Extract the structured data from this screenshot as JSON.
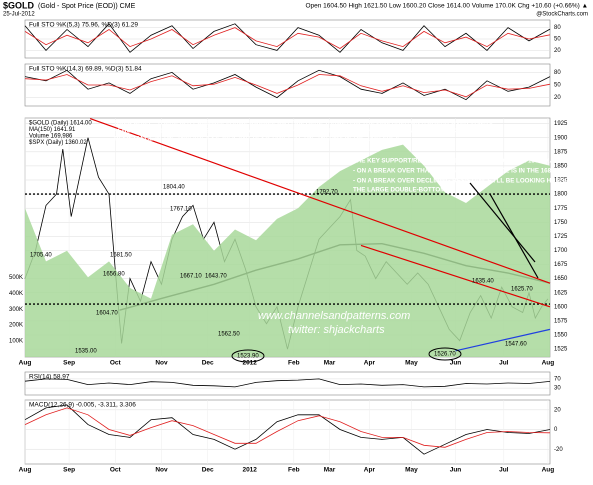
{
  "header": {
    "symbol": "$GOLD",
    "name": "(Gold - Spot Price (EOD)) CME",
    "date": "25-Jul-2012",
    "quote": "Open 1604.50  High 1621.50  Low 1600.20  Close 1614.00  Volume 170.0K  Chg +10.60 (+0.66%) ▲",
    "brand": "@StockCharts.com"
  },
  "notes": {
    "left": [
      "GOLD DAILY - THERE IS A POSSIBLE LARGE DOUBLE BOTTOM HERE TARGETING THE 2060 AREA ON A BREAK OVER 1792.70",
      "- SHORTER TERM THOUGH THE SYMMETRICAL TRIANGLE HAS BROKEN UP WITH THE OBVIOUS TARGET AT DECLINING",
      "RESISTANCE IN THE 1680 AREA SIGNIFICANT RESISTANCE AT THE 150 DMA IN THE 1640 AREA"
    ],
    "right": [
      "THE KEY SUPPORT/RESISTANCE LEVEL ON GOLD IS THE 150 DMA",
      "- ON A BREAK OVER THAT DECLINING RESISTANCE IS IN THE 1680 AREA",
      "- ON A BREAK OVER DECLINING RESISTANCE I'LL BE LOOKING HARDER AT",
      "THE LARGE DOUBLE-BOTTOM"
    ],
    "watermark": [
      "www.channelsandpatterns.com",
      "twitter: shjackcharts"
    ]
  },
  "price_labels": [
    "1705.40",
    "1681.50",
    "1656.80",
    "1804.40",
    "1767.10",
    "1667.10",
    "1643.70",
    "1604.70",
    "1535.00",
    "1562.50",
    "1523.90",
    "1792.70",
    "1526.70",
    "1635.40",
    "1625.70",
    "1547.60"
  ],
  "chart_data": [
    {
      "type": "line",
      "title": "Full STO %K(5,3) 75.96, %D(3) 61.29",
      "xlim": [
        0,
        250
      ],
      "ylim": [
        0,
        100
      ],
      "yticks": [
        20,
        50,
        80
      ],
      "x": [
        0,
        10,
        20,
        30,
        40,
        50,
        60,
        70,
        80,
        90,
        100,
        110,
        120,
        130,
        140,
        150,
        160,
        170,
        180,
        190,
        200,
        210,
        220,
        230,
        240,
        250
      ],
      "series": [
        {
          "color": "#000000",
          "values": [
            85,
            20,
            75,
            30,
            90,
            15,
            60,
            85,
            25,
            70,
            90,
            35,
            20,
            80,
            60,
            15,
            75,
            40,
            20,
            85,
            30,
            65,
            20,
            80,
            45,
            76
          ]
        },
        {
          "color": "#e02020",
          "values": [
            70,
            35,
            60,
            40,
            75,
            30,
            50,
            75,
            35,
            60,
            80,
            45,
            30,
            65,
            55,
            25,
            65,
            45,
            30,
            70,
            40,
            55,
            30,
            65,
            50,
            61
          ]
        }
      ]
    },
    {
      "type": "line",
      "title": "Full STO %K(14,3) 69.89, %D(3) 51.84",
      "xlim": [
        0,
        250
      ],
      "ylim": [
        0,
        100
      ],
      "yticks": [
        20,
        50,
        80
      ],
      "x": [
        0,
        10,
        20,
        30,
        40,
        50,
        60,
        70,
        80,
        90,
        100,
        110,
        120,
        130,
        140,
        150,
        160,
        170,
        180,
        190,
        200,
        210,
        220,
        230,
        240,
        250
      ],
      "series": [
        {
          "color": "#000000",
          "values": [
            70,
            60,
            85,
            40,
            55,
            30,
            65,
            80,
            40,
            55,
            75,
            45,
            20,
            60,
            85,
            70,
            40,
            30,
            55,
            25,
            40,
            15,
            60,
            35,
            45,
            70
          ]
        },
        {
          "color": "#e02020",
          "values": [
            65,
            62,
            75,
            50,
            50,
            38,
            58,
            72,
            48,
            52,
            68,
            50,
            30,
            50,
            75,
            72,
            48,
            35,
            48,
            32,
            38,
            22,
            50,
            40,
            42,
            52
          ]
        }
      ]
    },
    {
      "type": "line",
      "legend": [
        "$GOLD (Daily) 1614.00",
        "MA(150) 1641.91",
        "Volume 169,986",
        "$SPX (Daily) 1360.02"
      ],
      "xlim": [
        0,
        250
      ],
      "ylim": [
        1511,
        1935
      ],
      "y2lim": [
        1000,
        1450
      ],
      "yticks": [
        1525,
        1550,
        1575,
        1600,
        1625,
        1650,
        1675,
        1700,
        1725,
        1750,
        1775,
        1800,
        1825,
        1850,
        1875,
        1900,
        1925
      ],
      "vlim": [
        0,
        1500000
      ],
      "vticks": [
        {
          "value": 100000,
          "label": "100K"
        },
        {
          "value": 200000,
          "label": "200K"
        },
        {
          "value": 300000,
          "label": "300K"
        },
        {
          "value": 400000,
          "label": "400K"
        },
        {
          "value": 500000,
          "label": "500K"
        }
      ],
      "xticks": [
        {
          "value": 0,
          "label": "Aug"
        },
        {
          "value": 21,
          "label": "Sep"
        },
        {
          "value": 43,
          "label": "Oct"
        },
        {
          "value": 65,
          "label": "Nov"
        },
        {
          "value": 87,
          "label": "Dec"
        },
        {
          "value": 107,
          "label": "2012"
        },
        {
          "value": 128,
          "label": "Feb"
        },
        {
          "value": 145,
          "label": "Mar"
        },
        {
          "value": 164,
          "label": "Apr"
        },
        {
          "value": 184,
          "label": "May"
        },
        {
          "value": 205,
          "label": "Jun"
        },
        {
          "value": 228,
          "label": "Jul"
        },
        {
          "value": 249,
          "label": "Aug"
        }
      ],
      "levels": [
        1800,
        1605
      ],
      "trendlines": [
        {
          "color": "#e00000",
          "points": [
            [
              31,
              1934
            ],
            [
              250,
              1642
            ]
          ]
        },
        {
          "color": "#e00000",
          "points": [
            [
              160,
              1709
            ],
            [
              250,
              1600
            ]
          ]
        },
        {
          "color": "#2040e0",
          "points": [
            [
              205,
              1522
            ],
            [
              250,
              1560
            ]
          ]
        }
      ],
      "series": [
        {
          "color": "#000000",
          "x": [
            0,
            5,
            10,
            15,
            18,
            22,
            26,
            30,
            35,
            40,
            44,
            46,
            50,
            55,
            60,
            65,
            70,
            75,
            80,
            85,
            90,
            95,
            100,
            105,
            110,
            115,
            120,
            125,
            130,
            135,
            140,
            145,
            150,
            155,
            158,
            162,
            167,
            172,
            177,
            182,
            187,
            192,
            197,
            202,
            207,
            212,
            217,
            222,
            227,
            232,
            237,
            240,
            243,
            246,
            249
          ],
          "values": [
            1650,
            1700,
            1780,
            1800,
            1880,
            1760,
            1830,
            1900,
            1830,
            1800,
            1620,
            1535,
            1650,
            1610,
            1680,
            1640,
            1720,
            1760,
            1780,
            1720,
            1750,
            1680,
            1720,
            1667,
            1600,
            1570,
            1600,
            1525,
            1600,
            1660,
            1720,
            1740,
            1760,
            1790,
            1700,
            1690,
            1650,
            1680,
            1660,
            1640,
            1660,
            1640,
            1600,
            1560,
            1540,
            1590,
            1620,
            1580,
            1635,
            1600,
            1590,
            1625,
            1580,
            1600,
            1614
          ]
        },
        {
          "color": "#000000",
          "x": [
            45,
            65,
            90,
            110,
            130,
            150,
            170,
            190,
            210,
            230,
            250
          ],
          "values": [
            1594,
            1615,
            1640,
            1665,
            1685,
            1710,
            1712,
            1695,
            1673,
            1660,
            1642
          ]
        },
        {
          "color": "#a8d89a",
          "axis": "y2",
          "x": [
            0,
            10,
            20,
            30,
            40,
            50,
            60,
            70,
            80,
            90,
            100,
            110,
            120,
            130,
            140,
            150,
            160,
            170,
            180,
            190,
            200,
            210,
            220,
            230,
            240,
            250
          ],
          "values": [
            1280,
            1180,
            1200,
            1150,
            1180,
            1130,
            1110,
            1230,
            1250,
            1200,
            1240,
            1220,
            1260,
            1280,
            1320,
            1350,
            1370,
            1390,
            1400,
            1360,
            1310,
            1290,
            1320,
            1350,
            1370,
            1360
          ]
        }
      ]
    },
    {
      "type": "line",
      "title": "RSI(14) 58.97",
      "xlim": [
        0,
        250
      ],
      "ylim": [
        0,
        100
      ],
      "yticks": [
        30,
        70
      ],
      "x": [
        0,
        10,
        20,
        30,
        40,
        50,
        60,
        70,
        80,
        90,
        100,
        110,
        120,
        130,
        140,
        150,
        160,
        170,
        180,
        190,
        200,
        210,
        220,
        230,
        240,
        250
      ],
      "series": [
        {
          "color": "#000000",
          "values": [
            60,
            70,
            68,
            45,
            52,
            45,
            58,
            55,
            42,
            40,
            35,
            55,
            62,
            65,
            70,
            45,
            48,
            42,
            45,
            35,
            38,
            50,
            48,
            52,
            50,
            59
          ]
        }
      ]
    },
    {
      "type": "line",
      "title": "MACD(12,26,9) -0.005, -3.311, 3.306",
      "xlim": [
        0,
        250
      ],
      "ylim": [
        -35,
        30
      ],
      "yticks": [
        -20,
        0,
        20
      ],
      "xticks": [
        {
          "value": 0,
          "label": "Aug"
        },
        {
          "value": 21,
          "label": "Sep"
        },
        {
          "value": 43,
          "label": "Oct"
        },
        {
          "value": 65,
          "label": "Nov"
        },
        {
          "value": 87,
          "label": "Dec"
        },
        {
          "value": 107,
          "label": "2012"
        },
        {
          "value": 128,
          "label": "Feb"
        },
        {
          "value": 145,
          "label": "Mar"
        },
        {
          "value": 164,
          "label": "Apr"
        },
        {
          "value": 184,
          "label": "May"
        },
        {
          "value": 205,
          "label": "Jun"
        },
        {
          "value": 228,
          "label": "Jul"
        },
        {
          "value": 249,
          "label": "Aug"
        }
      ],
      "x": [
        0,
        10,
        20,
        30,
        40,
        50,
        60,
        70,
        80,
        90,
        100,
        110,
        120,
        130,
        140,
        150,
        160,
        170,
        180,
        190,
        200,
        210,
        220,
        230,
        240,
        250
      ],
      "series": [
        {
          "color": "#000000",
          "values": [
            10,
            22,
            25,
            5,
            -5,
            -8,
            10,
            12,
            -5,
            -10,
            -20,
            -10,
            8,
            15,
            15,
            0,
            -8,
            -10,
            -8,
            -25,
            -15,
            -5,
            0,
            -3,
            -4,
            -0.005
          ]
        },
        {
          "color": "#e02020",
          "values": [
            5,
            15,
            22,
            15,
            0,
            -6,
            2,
            9,
            4,
            -5,
            -14,
            -14,
            -2,
            9,
            14,
            8,
            -2,
            -8,
            -8,
            -16,
            -18,
            -10,
            -3,
            -2,
            -3,
            -3.311
          ]
        }
      ]
    }
  ]
}
